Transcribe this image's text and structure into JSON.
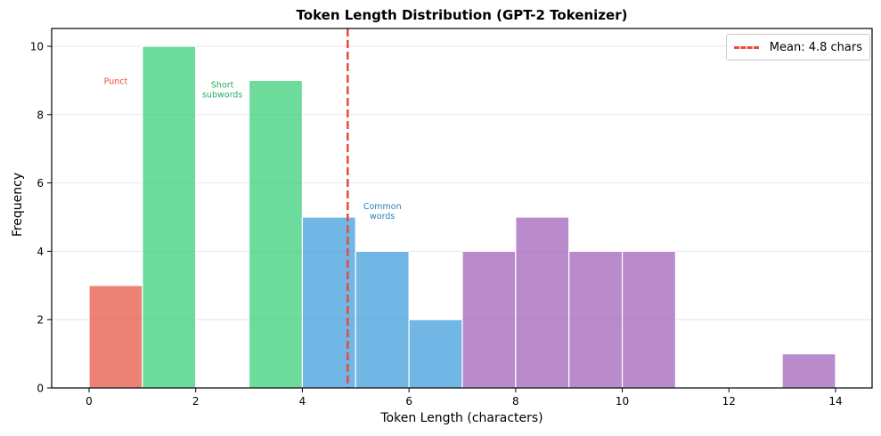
{
  "chart_data": {
    "type": "bar",
    "title": "Token Length Distribution (GPT-2 Tokenizer)",
    "xlabel": "Token Length (characters)",
    "ylabel": "Frequency",
    "xlim": [
      -0.7,
      14.7
    ],
    "ylim": [
      0,
      10.5
    ],
    "xticks": [
      0,
      2,
      4,
      6,
      8,
      10,
      12,
      14
    ],
    "yticks": [
      0,
      2,
      4,
      6,
      8,
      10
    ],
    "grid": {
      "axis": "y",
      "on": true
    },
    "bins": [
      {
        "start": 0,
        "end": 1,
        "count": 3,
        "category": "punct"
      },
      {
        "start": 1,
        "end": 2,
        "count": 10,
        "category": "short"
      },
      {
        "start": 2,
        "end": 3,
        "count": 0,
        "category": "short"
      },
      {
        "start": 3,
        "end": 4,
        "count": 9,
        "category": "short"
      },
      {
        "start": 4,
        "end": 5,
        "count": 5,
        "category": "common"
      },
      {
        "start": 5,
        "end": 6,
        "count": 4,
        "category": "common"
      },
      {
        "start": 6,
        "end": 7,
        "count": 2,
        "category": "common"
      },
      {
        "start": 7,
        "end": 8,
        "count": 4,
        "category": "long"
      },
      {
        "start": 8,
        "end": 9,
        "count": 5,
        "category": "long"
      },
      {
        "start": 9,
        "end": 10,
        "count": 4,
        "category": "long"
      },
      {
        "start": 10,
        "end": 11,
        "count": 4,
        "category": "long"
      },
      {
        "start": 11,
        "end": 12,
        "count": 0,
        "category": "long"
      },
      {
        "start": 12,
        "end": 13,
        "count": 0,
        "category": "long"
      },
      {
        "start": 13,
        "end": 14,
        "count": 1,
        "category": "long"
      }
    ],
    "colors": {
      "punct": "#e74c3c",
      "short": "#2ecc71",
      "common": "#3498db",
      "long": "#9b59b6",
      "edge": "#ffffff",
      "mean_line": "#e74c3c",
      "grid": "#e6e6e6"
    },
    "mean_line": {
      "x": 4.85,
      "label": "Mean: 4.8 chars",
      "style": "dashed"
    },
    "annotations": [
      {
        "text": "Punct",
        "x": 0.5,
        "y": 9.0,
        "color": "#e74c3c"
      },
      {
        "text": "Short\nsubwords",
        "x": 2.5,
        "y": 8.75,
        "color": "#27ae60"
      },
      {
        "text": "Common\nwords",
        "x": 5.5,
        "y": 5.2,
        "color": "#2980b9"
      }
    ],
    "legend": {
      "position": "upper right",
      "entries": [
        "Mean: 4.8 chars"
      ]
    }
  }
}
